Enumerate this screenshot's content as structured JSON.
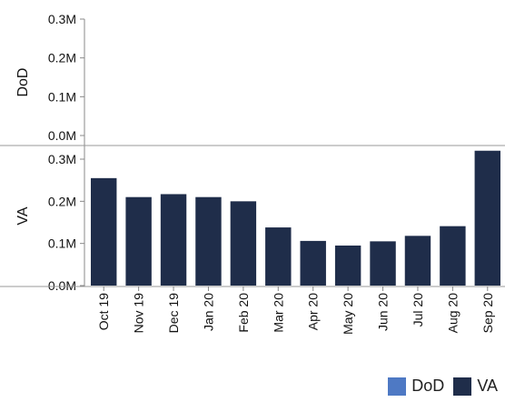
{
  "chart_data": {
    "type": "bar",
    "categories": [
      "Oct 19",
      "Nov 19",
      "Dec 19",
      "Jan 20",
      "Feb 20",
      "Mar 20",
      "Apr 20",
      "May 20",
      "Jun 20",
      "Jul 20",
      "Aug 20",
      "Sep 20"
    ],
    "panels": [
      {
        "name": "DoD",
        "values": [
          0,
          0,
          0,
          0,
          0,
          0,
          0,
          0,
          0,
          0,
          0,
          0
        ],
        "ylim": [
          0,
          300000
        ],
        "yticks": [
          "0.0M",
          "0.1M",
          "0.2M",
          "0.3M"
        ]
      },
      {
        "name": "VA",
        "values": [
          255000,
          210000,
          217000,
          210000,
          200000,
          138000,
          106000,
          95000,
          105000,
          118000,
          141000,
          320000
        ],
        "ylim": [
          0,
          300000
        ],
        "yticks": [
          "0.0M",
          "0.1M",
          "0.2M",
          "0.3M"
        ]
      }
    ],
    "legend": [
      {
        "label": "DoD",
        "color": "#4e79c4"
      },
      {
        "label": "VA",
        "color": "#1f2d4a"
      }
    ],
    "legend_position": "bottom-right",
    "grid": false
  }
}
